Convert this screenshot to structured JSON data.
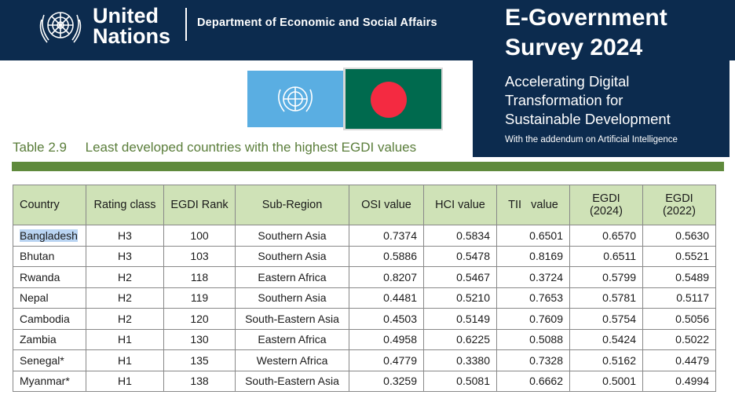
{
  "header": {
    "org_name_line1": "United",
    "org_name_line2": "Nations",
    "department": "Department of Economic and Social Affairs"
  },
  "survey": {
    "title_line1": "E-Government",
    "title_line2": "Survey 2024",
    "subtitle_line1": "Accelerating Digital",
    "subtitle_line2": "Transformation for",
    "subtitle_line3": "Sustainable Development",
    "addendum": "With the addendum on Artificial Intelligence"
  },
  "table": {
    "caption_number": "Table 2.9",
    "caption_text": "Least developed countries with the highest EGDI values",
    "headers": [
      "Country",
      "Rating class",
      "EGDI Rank",
      "Sub-Region",
      "OSI value",
      "HCI value",
      "TII   value",
      "EGDI (2024)",
      "EGDI (2022)"
    ],
    "rows": [
      [
        "Bangladesh",
        "H3",
        "100",
        "Southern Asia",
        "0.7374",
        "0.5834",
        "0.6501",
        "0.6570",
        "0.5630"
      ],
      [
        "Bhutan",
        "H3",
        "103",
        "Southern Asia",
        "0.5886",
        "0.5478",
        "0.8169",
        "0.6511",
        "0.5521"
      ],
      [
        "Rwanda",
        "H2",
        "118",
        "Eastern Africa",
        "0.8207",
        "0.5467",
        "0.3724",
        "0.5799",
        "0.5489"
      ],
      [
        "Nepal",
        "H2",
        "119",
        "Southern Asia",
        "0.4481",
        "0.5210",
        "0.7653",
        "0.5781",
        "0.5117"
      ],
      [
        "Cambodia",
        "H2",
        "120",
        "South-Eastern Asia",
        "0.4503",
        "0.5149",
        "0.7609",
        "0.5754",
        "0.5056"
      ],
      [
        "Zambia",
        "H1",
        "130",
        "Eastern Africa",
        "0.4958",
        "0.6225",
        "0.5088",
        "0.5424",
        "0.5022"
      ],
      [
        "Senegal*",
        "H1",
        "135",
        "Western Africa",
        "0.4779",
        "0.3380",
        "0.7328",
        "0.5162",
        "0.4479"
      ],
      [
        "Myanmar*",
        "H1",
        "138",
        "South-Eastern Asia",
        "0.3259",
        "0.5081",
        "0.6662",
        "0.5001",
        "0.4994"
      ]
    ],
    "selected_cell": "Bangladesh"
  },
  "colors": {
    "banner": "#0c2b4e",
    "caption_green": "#5a7d3a",
    "header_fill": "#cfe2b7",
    "selection": "#b9d4f2"
  }
}
